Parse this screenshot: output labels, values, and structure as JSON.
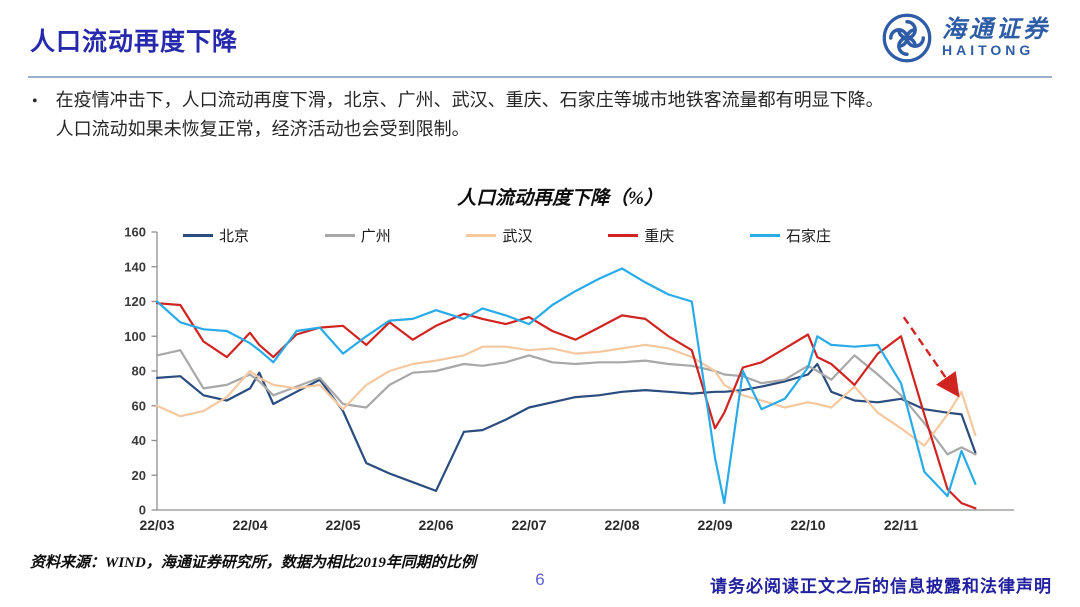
{
  "header": {
    "title": "人口流动再度下降",
    "logo": {
      "name_cn": "海通证券",
      "name_en": "HAITONG",
      "brand_color": "#2e5ca6"
    }
  },
  "bullet": {
    "marker": "•",
    "lines": [
      "在疫情冲击下，人口流动再度下滑，北京、广州、武汉、重庆、石家庄等城市地铁客流量都有明显下降。",
      "人口流动如果未恢复正常，经济活动也会受到限制。"
    ]
  },
  "chart_data": {
    "type": "line",
    "title": "人口流动再度下降（%）",
    "x_ticks": [
      "22/03",
      "22/04",
      "22/05",
      "22/06",
      "22/07",
      "22/08",
      "22/09",
      "22/10",
      "22/11"
    ],
    "x_note": "x = months after 2022-03; non-uniform sample points to capture spikes",
    "ylim": [
      0,
      160
    ],
    "y_ticks": [
      0,
      20,
      40,
      60,
      80,
      100,
      120,
      140,
      160
    ],
    "grid": false,
    "legend_position": "top",
    "x": [
      0,
      0.25,
      0.5,
      0.75,
      1,
      1.1,
      1.25,
      1.5,
      1.75,
      2,
      2.25,
      2.5,
      2.75,
      3,
      3.3,
      3.5,
      3.75,
      4,
      4.25,
      4.5,
      4.75,
      5,
      5.25,
      5.5,
      5.75,
      6,
      6.1,
      6.3,
      6.5,
      6.75,
      7,
      7.1,
      7.25,
      7.5,
      7.75,
      8,
      8.25,
      8.5,
      8.65,
      8.8
    ],
    "series": [
      {
        "name": "北京",
        "color": "#2b4c7e",
        "values": [
          76,
          77,
          66,
          63,
          70,
          79,
          61,
          68,
          75,
          57,
          27,
          21,
          16,
          11,
          45,
          46,
          52,
          59,
          62,
          65,
          66,
          68,
          69,
          68,
          67,
          68,
          68,
          69,
          71,
          74,
          78,
          84,
          68,
          63,
          62,
          64,
          58,
          56,
          55,
          33
        ]
      },
      {
        "name": "广州",
        "color": "#a8a8a8",
        "values": [
          89,
          92,
          70,
          72,
          78,
          74,
          66,
          71,
          76,
          61,
          59,
          72,
          79,
          80,
          84,
          83,
          85,
          89,
          85,
          84,
          85,
          85,
          86,
          84,
          83,
          80,
          78,
          77,
          73,
          75,
          83,
          80,
          75,
          89,
          78,
          66,
          50,
          32,
          36,
          32
        ]
      },
      {
        "name": "武汉",
        "color": "#f5c8a0",
        "values": [
          60,
          54,
          57,
          65,
          80,
          76,
          72,
          70,
          72,
          58,
          72,
          80,
          84,
          86,
          89,
          94,
          94,
          92,
          93,
          90,
          91,
          93,
          95,
          93,
          88,
          80,
          72,
          66,
          63,
          59,
          62,
          61,
          59,
          71,
          56,
          47,
          37,
          55,
          68,
          43
        ]
      },
      {
        "name": "重庆",
        "color": "#d02421",
        "values": [
          119,
          118,
          97,
          88,
          102,
          95,
          88,
          101,
          105,
          106,
          95,
          108,
          98,
          106,
          113,
          110,
          107,
          111,
          103,
          98,
          105,
          112,
          110,
          100,
          92,
          47,
          56,
          82,
          85,
          93,
          101,
          88,
          84,
          72,
          90,
          100,
          55,
          12,
          4,
          1
        ]
      },
      {
        "name": "石家庄",
        "color": "#29abe8",
        "values": [
          120,
          108,
          104,
          103,
          96,
          92,
          85,
          103,
          105,
          90,
          100,
          109,
          110,
          115,
          110,
          116,
          112,
          107,
          118,
          126,
          133,
          139,
          131,
          124,
          120,
          30,
          4,
          80,
          58,
          64,
          82,
          100,
          95,
          94,
          95,
          73,
          22,
          8,
          34,
          15
        ]
      }
    ],
    "annotation_arrow": {
      "from_t": 8.03,
      "from_v": 111,
      "to_t": 8.6,
      "to_v": 67,
      "color": "#d02421",
      "style": "dashed"
    }
  },
  "footer": {
    "source": "资料来源：WIND，海通证券研究所，数据为相比2019年同期的比例",
    "page_number": "6",
    "disclaimer": "请务必阅读正文之后的信息披露和法律声明"
  }
}
